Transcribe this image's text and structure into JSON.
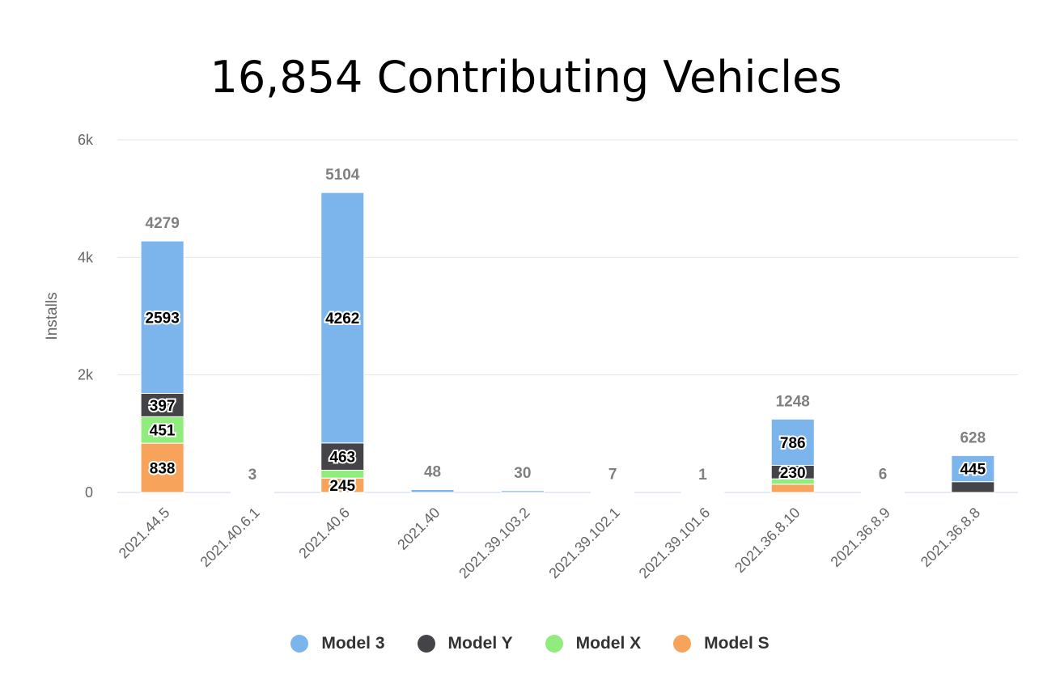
{
  "chart_data": {
    "type": "bar",
    "stacked": true,
    "title": "16,854 Contributing Vehicles",
    "ylabel": "Installs",
    "ylim": [
      0,
      6000
    ],
    "yticks": [
      {
        "value": 0,
        "label": "0"
      },
      {
        "value": 2000,
        "label": "2k"
      },
      {
        "value": 4000,
        "label": "4k"
      },
      {
        "value": 6000,
        "label": "6k"
      }
    ],
    "grid": true,
    "legend_position": "bottom",
    "categories": [
      "2021.44.5",
      "2021.40.6.1",
      "2021.40.6",
      "2021.40",
      "2021.39.103.2",
      "2021.39.102.1",
      "2021.39.101.6",
      "2021.36.8.10",
      "2021.36.8.9",
      "2021.36.8.8"
    ],
    "totals": [
      4279,
      3,
      5104,
      48,
      30,
      7,
      1,
      1248,
      6,
      628
    ],
    "series": [
      {
        "name": "Model S",
        "color": "#f7a35c",
        "values": [
          838,
          0,
          245,
          0,
          0,
          0,
          0,
          140,
          0,
          0
        ],
        "labels": [
          "838",
          "",
          "245",
          "",
          "",
          "",
          "",
          "",
          "",
          ""
        ]
      },
      {
        "name": "Model X",
        "color": "#90ed7d",
        "values": [
          451,
          0,
          134,
          0,
          0,
          0,
          0,
          92,
          0,
          0
        ],
        "labels": [
          "451",
          "",
          "",
          "",
          "",
          "",
          "",
          "",
          "",
          ""
        ]
      },
      {
        "name": "Model Y",
        "color": "#434348",
        "values": [
          397,
          0,
          463,
          0,
          0,
          0,
          0,
          230,
          0,
          183
        ],
        "labels": [
          "397",
          "",
          "463",
          "",
          "",
          "",
          "",
          "230",
          "",
          ""
        ]
      },
      {
        "name": "Model 3",
        "color": "#7cb5ec",
        "values": [
          2593,
          3,
          4262,
          48,
          30,
          7,
          1,
          786,
          6,
          445
        ],
        "labels": [
          "2593",
          "",
          "4262",
          "",
          "",
          "",
          "",
          "786",
          "",
          "445"
        ]
      }
    ],
    "legend_order": [
      "Model 3",
      "Model Y",
      "Model X",
      "Model S"
    ]
  }
}
